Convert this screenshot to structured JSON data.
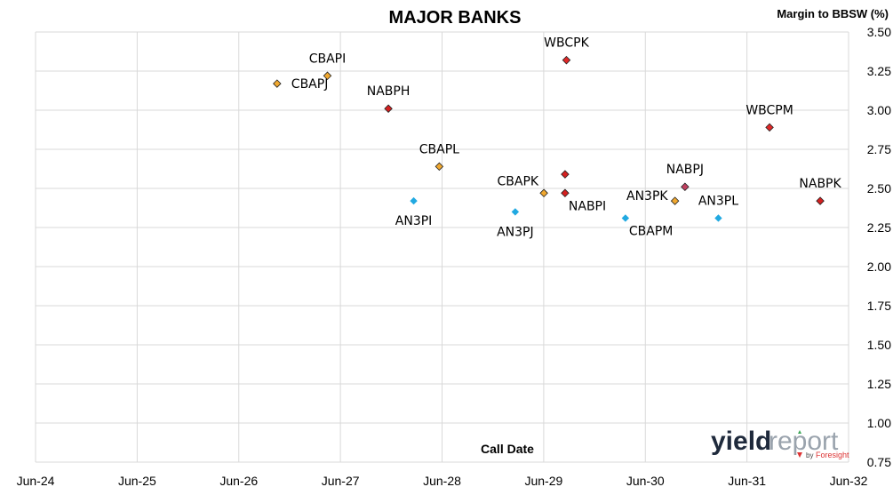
{
  "chart_data": {
    "type": "scatter",
    "title": "MAJOR BANKS",
    "xlabel": "Call Date",
    "ylabel": "Margin to BBSW (%)",
    "x_axis": "date",
    "xlim": [
      "2024-06-30",
      "2032-06-30"
    ],
    "ylim": [
      0.75,
      3.5
    ],
    "x_ticks": [
      "Jun-24",
      "Jun-25",
      "Jun-26",
      "Jun-27",
      "Jun-28",
      "Jun-29",
      "Jun-30",
      "Jun-31",
      "Jun-32"
    ],
    "y_ticks": [
      "0.75",
      "1.00",
      "1.25",
      "1.50",
      "1.75",
      "2.00",
      "2.25",
      "2.50",
      "2.75",
      "3.00",
      "3.25",
      "3.50"
    ],
    "grid": true,
    "points": [
      {
        "label": "CBAPI",
        "x": "2027-05-15",
        "y": 3.22,
        "color": "#f0a830",
        "label_pos": "above"
      },
      {
        "label": "CBAPJ",
        "x": "2026-11-15",
        "y": 3.17,
        "color": "#f0a830",
        "label_pos": "right"
      },
      {
        "label": "NABPH",
        "x": "2027-12-20",
        "y": 3.01,
        "color": "#d42020",
        "label_pos": "above"
      },
      {
        "label": "WBCPK",
        "x": "2029-09-20",
        "y": 3.32,
        "color": "#e02828",
        "label_pos": "above"
      },
      {
        "label": "WBCPM",
        "x": "2031-09-20",
        "y": 2.89,
        "color": "#e02828",
        "label_pos": "above"
      },
      {
        "label": "CBAPL",
        "x": "2028-06-20",
        "y": 2.64,
        "color": "#f0a830",
        "label_pos": "above"
      },
      {
        "label": "",
        "x": "2029-09-15",
        "y": 2.59,
        "color": "#d42020",
        "label_pos": "none"
      },
      {
        "label": "NABPJ",
        "x": "2030-11-20",
        "y": 2.51,
        "color": "#c04060",
        "label_pos": "above"
      },
      {
        "label": "CBAPK",
        "x": "2029-07-01",
        "y": 2.47,
        "color": "#f0a830",
        "label_pos": "above-left"
      },
      {
        "label": "NABPI",
        "x": "2029-09-15",
        "y": 2.47,
        "color": "#d42020",
        "label_pos": "below-right"
      },
      {
        "label": "AN3PK",
        "x": "2030-10-15",
        "y": 2.42,
        "color": "#f0a830",
        "label_pos": "left"
      },
      {
        "label": "NABPK",
        "x": "2032-03-20",
        "y": 2.42,
        "color": "#d42020",
        "label_pos": "above"
      },
      {
        "label": "AN3PI",
        "x": "2028-03-20",
        "y": 2.42,
        "color": "#21a9e1",
        "label_pos": "below"
      },
      {
        "label": "AN3PJ",
        "x": "2029-03-20",
        "y": 2.35,
        "color": "#21a9e1",
        "label_pos": "below"
      },
      {
        "label": "CBAPM",
        "x": "2030-04-20",
        "y": 2.31,
        "color": "#21a9e1",
        "label_pos": "below-right"
      },
      {
        "label": "AN3PL",
        "x": "2031-03-20",
        "y": 2.31,
        "color": "#21a9e1",
        "label_pos": "above"
      }
    ]
  },
  "logo": {
    "main": "yield",
    "accent": "report",
    "by": "by",
    "brand": "Foresight"
  }
}
